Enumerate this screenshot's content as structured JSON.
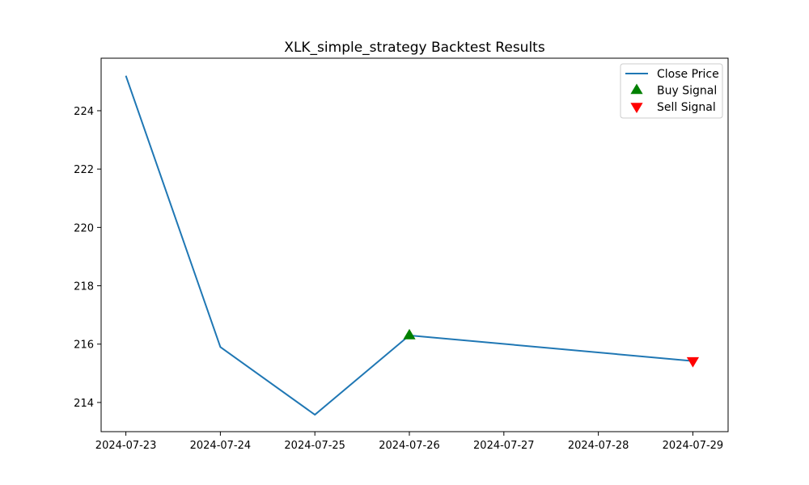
{
  "chart_data": {
    "type": "line",
    "title": "XLK_simple_strategy Backtest Results",
    "xlabel": "",
    "ylabel": "",
    "x": [
      "2024-07-23",
      "2024-07-24",
      "2024-07-25",
      "2024-07-26",
      "2024-07-29"
    ],
    "series": [
      {
        "name": "Close Price",
        "values": [
          225.2,
          215.9,
          213.58,
          216.3,
          215.42
        ],
        "color": "#1f77b4"
      }
    ],
    "buy_signals": [
      {
        "x": "2024-07-26",
        "y": 216.3
      }
    ],
    "sell_signals": [
      {
        "x": "2024-07-29",
        "y": 215.42
      }
    ],
    "buy_color": "#008000",
    "sell_color": "#ff0000",
    "x_ticks": [
      "2024-07-23",
      "2024-07-24",
      "2024-07-25",
      "2024-07-26",
      "2024-07-27",
      "2024-07-28",
      "2024-07-29"
    ],
    "y_ticks": [
      214,
      216,
      218,
      220,
      222,
      224
    ],
    "xlim": [
      "2024-07-22T17:43",
      "2024-07-29T08:57"
    ],
    "ylim": [
      213.0,
      225.8
    ],
    "grid": false,
    "legend_position": "top-right",
    "legend": [
      {
        "label": "Close Price",
        "marker": "line",
        "color": "#1f77b4"
      },
      {
        "label": "Buy Signal",
        "marker": "triangle-up",
        "color": "#008000"
      },
      {
        "label": "Sell Signal",
        "marker": "triangle-down",
        "color": "#ff0000"
      }
    ]
  }
}
